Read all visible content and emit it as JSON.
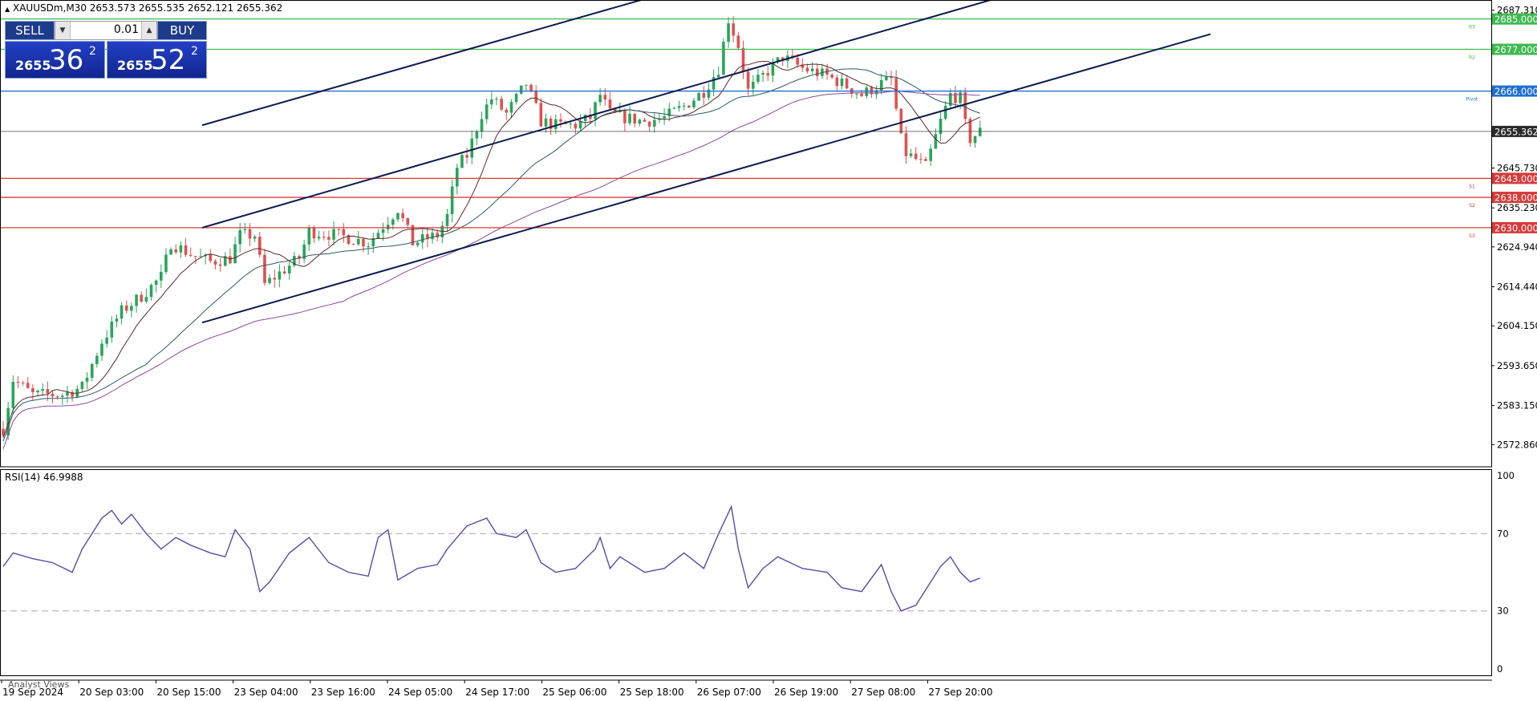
{
  "header": {
    "symbol_line": "XAUUSDm,M30  2653.573 2655.535 2652.121 2655.362"
  },
  "trade_panel": {
    "sell_label": "SELL",
    "buy_label": "BUY",
    "volume": "0.01",
    "sell_price_prefix": "2655",
    "sell_price_big": "36",
    "sell_price_sup": "2",
    "buy_price_prefix": "2655",
    "buy_price_big": "52",
    "buy_price_sup": "2"
  },
  "footer": {
    "analyst_views": "Analyst Views"
  },
  "chart_data": [
    {
      "type": "candlestick",
      "symbol": "XAUUSDm",
      "timeframe": "M30",
      "ylim": [
        2567,
        2690
      ],
      "y_ticks": [
        "2687.310",
        "2645.730",
        "2635.230",
        "2624.940",
        "2614.440",
        "2604.150",
        "2593.650",
        "2583.150",
        "2572.860"
      ],
      "x_ticks": [
        "19 Sep 2024",
        "20 Sep 03:00",
        "20 Sep 15:00",
        "23 Sep 04:00",
        "23 Sep 16:00",
        "24 Sep 05:00",
        "24 Sep 17:00",
        "25 Sep 06:00",
        "25 Sep 18:00",
        "26 Sep 07:00",
        "26 Sep 19:00",
        "27 Sep 08:00",
        "27 Sep 20:00"
      ],
      "close_path": [
        [
          0,
          2577
        ],
        [
          10,
          2590
        ],
        [
          30,
          2586
        ],
        [
          60,
          2586
        ],
        [
          80,
          2588
        ],
        [
          100,
          2600
        ],
        [
          120,
          2608
        ],
        [
          140,
          2612
        ],
        [
          160,
          2617
        ],
        [
          170,
          2626
        ],
        [
          190,
          2623
        ],
        [
          210,
          2621
        ],
        [
          230,
          2622
        ],
        [
          240,
          2628
        ],
        [
          255,
          2628
        ],
        [
          265,
          2615
        ],
        [
          280,
          2618
        ],
        [
          300,
          2622
        ],
        [
          310,
          2629
        ],
        [
          340,
          2628
        ],
        [
          370,
          2626
        ],
        [
          390,
          2632
        ],
        [
          400,
          2635
        ],
        [
          415,
          2626
        ],
        [
          440,
          2628
        ],
        [
          450,
          2633
        ],
        [
          460,
          2646
        ],
        [
          470,
          2649
        ],
        [
          485,
          2660
        ],
        [
          495,
          2664
        ],
        [
          510,
          2660
        ],
        [
          530,
          2668
        ],
        [
          545,
          2658
        ],
        [
          560,
          2657
        ],
        [
          580,
          2657
        ],
        [
          595,
          2659
        ],
        [
          605,
          2665
        ],
        [
          615,
          2660
        ],
        [
          630,
          2659
        ],
        [
          650,
          2658
        ],
        [
          670,
          2659
        ],
        [
          690,
          2662
        ],
        [
          710,
          2666
        ],
        [
          725,
          2672
        ],
        [
          735,
          2685
        ],
        [
          745,
          2678
        ],
        [
          755,
          2666
        ],
        [
          770,
          2670
        ],
        [
          790,
          2675
        ],
        [
          810,
          2672
        ],
        [
          835,
          2670
        ],
        [
          850,
          2668
        ],
        [
          870,
          2665
        ],
        [
          890,
          2668
        ],
        [
          900,
          2669
        ],
        [
          912,
          2650
        ],
        [
          925,
          2648
        ],
        [
          935,
          2646
        ],
        [
          950,
          2658
        ],
        [
          960,
          2665
        ],
        [
          970,
          2664
        ],
        [
          978,
          2653
        ],
        [
          990,
          2655.36
        ]
      ],
      "price_lines": [
        {
          "name": "R3",
          "value": 2685.0,
          "label": "2685.000",
          "color": "#3fb950"
        },
        {
          "name": "R2",
          "value": 2677.0,
          "label": "2677.000",
          "color": "#3fb950"
        },
        {
          "name": "Pivot",
          "value": 2666.0,
          "label": "2666.000",
          "color": "#1f6fd1"
        },
        {
          "name": "current",
          "value": 2655.362,
          "label": "2655.362",
          "color": "#444444"
        },
        {
          "name": "S1",
          "value": 2643.0,
          "label": "2643.000",
          "color": "#d63a3a"
        },
        {
          "name": "S2",
          "value": 2638.0,
          "label": "2638.000",
          "color": "#d63a3a"
        },
        {
          "name": "S3",
          "value": 2630.0,
          "label": "2630.000",
          "color": "#d63a3a"
        }
      ],
      "channel_lines": [
        {
          "from": [
            248,
            2657
          ],
          "to": [
            845,
            2693
          ]
        },
        {
          "from": [
            248,
            2630
          ],
          "to": [
            1280,
            2693
          ]
        },
        {
          "from": [
            248,
            2605
          ],
          "to": [
            1505,
            2681
          ]
        }
      ]
    },
    {
      "type": "line",
      "title": "RSI(14) 46.9988",
      "ylim": [
        0,
        100
      ],
      "y_ticks": [
        "100",
        "70",
        "30",
        "0"
      ],
      "levels": [
        70,
        30
      ],
      "series": [
        {
          "values": [
            [
              0,
              53
            ],
            [
              10,
              60
            ],
            [
              30,
              57
            ],
            [
              50,
              55
            ],
            [
              70,
              50
            ],
            [
              80,
              62
            ],
            [
              100,
              78
            ],
            [
              110,
              82
            ],
            [
              120,
              75
            ],
            [
              130,
              80
            ],
            [
              145,
              70
            ],
            [
              160,
              62
            ],
            [
              175,
              68
            ],
            [
              190,
              64
            ],
            [
              210,
              60
            ],
            [
              225,
              58
            ],
            [
              235,
              72
            ],
            [
              250,
              62
            ],
            [
              260,
              40
            ],
            [
              270,
              45
            ],
            [
              290,
              60
            ],
            [
              310,
              68
            ],
            [
              330,
              55
            ],
            [
              350,
              50
            ],
            [
              370,
              48
            ],
            [
              380,
              68
            ],
            [
              390,
              72
            ],
            [
              400,
              46
            ],
            [
              420,
              52
            ],
            [
              440,
              54
            ],
            [
              450,
              62
            ],
            [
              460,
              68
            ],
            [
              470,
              74
            ],
            [
              490,
              78
            ],
            [
              500,
              70
            ],
            [
              520,
              68
            ],
            [
              530,
              72
            ],
            [
              545,
              55
            ],
            [
              560,
              50
            ],
            [
              580,
              52
            ],
            [
              600,
              62
            ],
            [
              605,
              68
            ],
            [
              615,
              52
            ],
            [
              625,
              58
            ],
            [
              650,
              50
            ],
            [
              670,
              52
            ],
            [
              690,
              60
            ],
            [
              710,
              52
            ],
            [
              725,
              70
            ],
            [
              738,
              84
            ],
            [
              745,
              62
            ],
            [
              755,
              42
            ],
            [
              770,
              52
            ],
            [
              785,
              58
            ],
            [
              810,
              52
            ],
            [
              835,
              50
            ],
            [
              850,
              42
            ],
            [
              870,
              40
            ],
            [
              890,
              54
            ],
            [
              900,
              40
            ],
            [
              910,
              30
            ],
            [
              925,
              33
            ],
            [
              940,
              45
            ],
            [
              950,
              53
            ],
            [
              960,
              58
            ],
            [
              970,
              50
            ],
            [
              980,
              45
            ],
            [
              990,
              47
            ]
          ]
        }
      ]
    }
  ]
}
